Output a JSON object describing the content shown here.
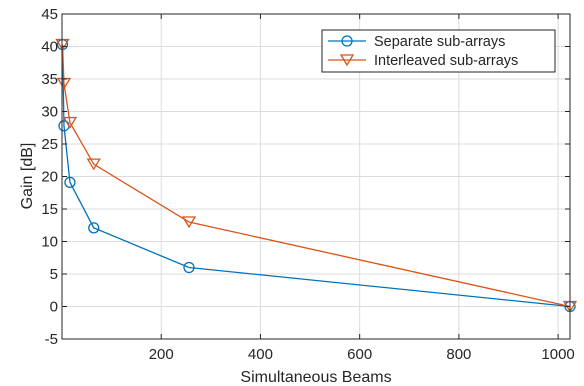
{
  "chart_data": {
    "type": "line",
    "title": "",
    "xlabel": "Simultaneous Beams",
    "ylabel": "Gain [dB]",
    "xlim": [
      0,
      1024
    ],
    "ylim": [
      -5,
      45
    ],
    "xticks": [
      200,
      400,
      600,
      800,
      1000
    ],
    "yticks": [
      -5,
      0,
      5,
      10,
      15,
      20,
      25,
      30,
      35,
      40,
      45
    ],
    "grid": true,
    "legend_position": "top-right",
    "series": [
      {
        "name": "Separate sub-arrays",
        "marker": "circle",
        "color": "#0072BD",
        "x": [
          1,
          4,
          16,
          64,
          256,
          1024
        ],
        "y": [
          40.3,
          27.8,
          19.1,
          12.1,
          6.0,
          0
        ]
      },
      {
        "name": "Interleaved sub-arrays",
        "marker": "triangle-down",
        "color": "#D95319",
        "x": [
          1,
          4,
          16,
          64,
          256,
          1024
        ],
        "y": [
          40.3,
          34.3,
          28.3,
          21.9,
          13.0,
          0
        ]
      }
    ]
  }
}
